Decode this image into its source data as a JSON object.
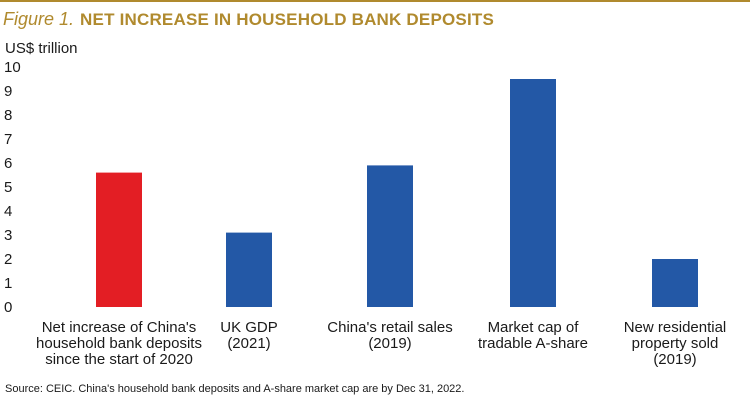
{
  "figure": {
    "label": "Figure 1.",
    "title": "NET INCREASE IN HOUSEHOLD BANK DEPOSITS",
    "unit": "US$ trillion",
    "source": "Source: CEIC. China's household bank deposits and A-share market cap are by Dec 31, 2022."
  },
  "colors": {
    "accent": "#b08a2e",
    "highlight_bar": "#e31e24",
    "bar": "#2358a6"
  },
  "chart_data": {
    "type": "bar",
    "title": "NET INCREASE IN HOUSEHOLD BANK DEPOSITS",
    "ylabel": "US$ trillion",
    "ylim": [
      0,
      10
    ],
    "yticks": [
      "0",
      "1",
      "2",
      "3",
      "4",
      "5",
      "6",
      "7",
      "8",
      "9",
      "10"
    ],
    "grid": false,
    "categories": [
      [
        "Net increase of China's",
        "household bank deposits",
        "since the start of 2020"
      ],
      [
        "UK GDP",
        "(2021)"
      ],
      [
        "China's retail sales",
        "(2019)"
      ],
      [
        "Market cap of",
        "tradable A-share"
      ],
      [
        "New residential",
        "property sold",
        "(2019)"
      ]
    ],
    "values": [
      5.6,
      3.1,
      5.9,
      9.5,
      2.0
    ],
    "bar_colors": [
      "#e31e24",
      "#2358a6",
      "#2358a6",
      "#2358a6",
      "#2358a6"
    ]
  }
}
